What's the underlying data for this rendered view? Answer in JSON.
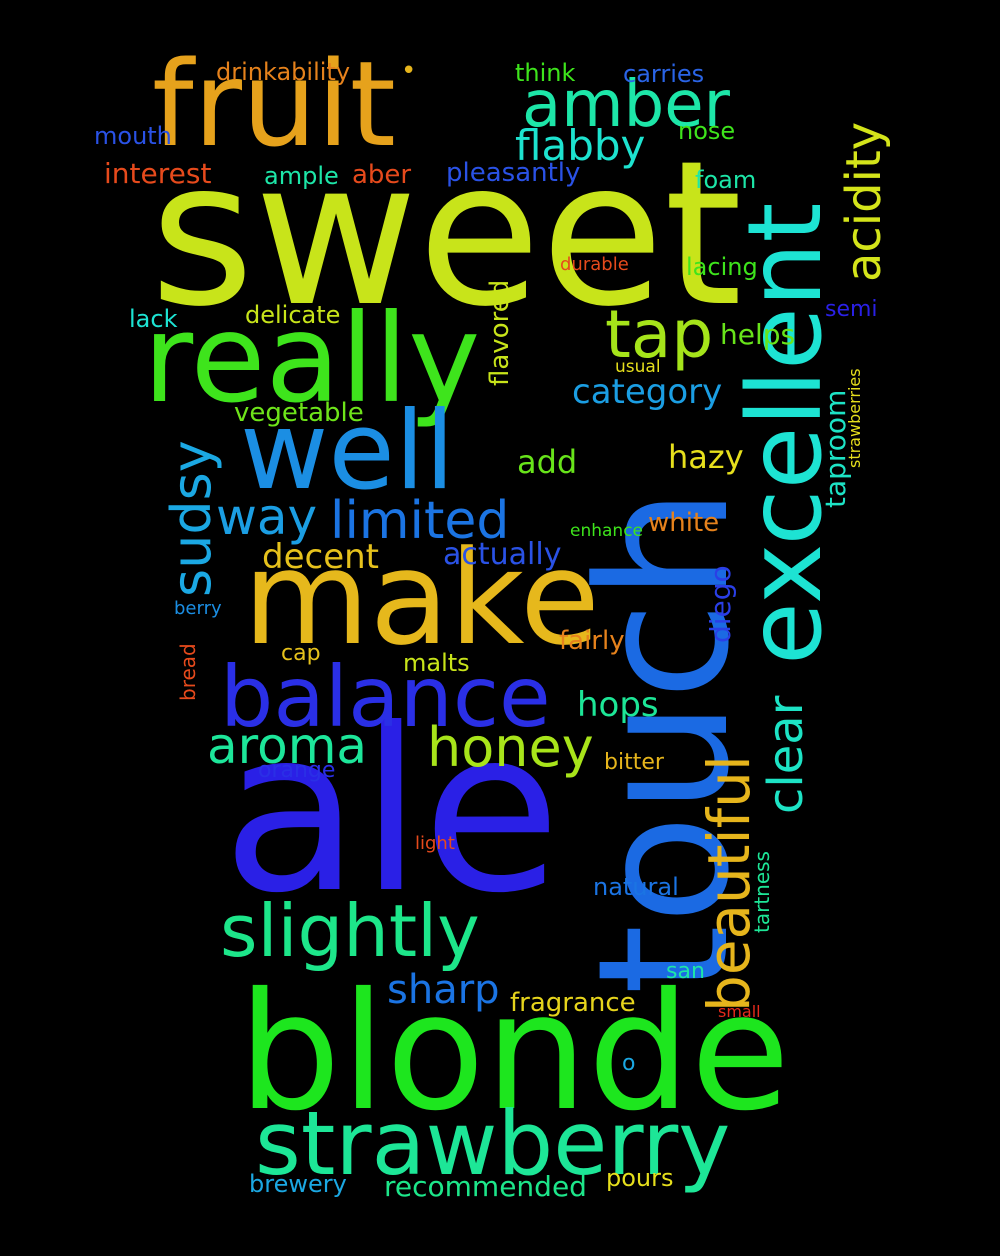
{
  "background": "#000000",
  "words": [
    {
      "text": "sweet",
      "color": "#c8e41a"
    },
    {
      "text": "ale",
      "color": "#2a20e6"
    },
    {
      "text": "touch",
      "color": "#1b6ae3"
    },
    {
      "text": "blonde",
      "color": "#1de61e"
    },
    {
      "text": "make",
      "color": "#e6b81c"
    },
    {
      "text": "really",
      "color": "#3ee41c"
    },
    {
      "text": "fruit",
      "color": "#e6a21c"
    },
    {
      "text": "excellent",
      "color": "#1de3d3"
    },
    {
      "text": "well",
      "color": "#1b8ee3"
    },
    {
      "text": "strawberry",
      "color": "#1de697"
    },
    {
      "text": "balance",
      "color": "#2a2fe6"
    },
    {
      "text": "slightly",
      "color": "#1de68a"
    },
    {
      "text": "amber",
      "color": "#1de6a8"
    },
    {
      "text": "beautiful",
      "color": "#e6b51c"
    },
    {
      "text": "tap",
      "color": "#a5e41a"
    },
    {
      "text": "honey",
      "color": "#a8e41a"
    },
    {
      "text": "aroma",
      "color": "#1de69a"
    },
    {
      "text": "limited",
      "color": "#1b74e3"
    },
    {
      "text": "sudsy",
      "color": "#1ba8e3"
    },
    {
      "text": "acidity",
      "color": "#d4e41a"
    },
    {
      "text": "clear",
      "color": "#1de3c5"
    },
    {
      "text": "flabby",
      "color": "#1de3cf"
    },
    {
      "text": "way",
      "color": "#1b9ee3"
    },
    {
      "text": "sharp",
      "color": "#1b74e3"
    },
    {
      "text": "decent",
      "color": "#e6c21c"
    },
    {
      "text": "category",
      "color": "#1b9ee3"
    },
    {
      "text": "hops",
      "color": "#1de697"
    },
    {
      "text": "add",
      "color": "#68e41a"
    },
    {
      "text": "hazy",
      "color": "#e6df1c"
    },
    {
      "text": "actually",
      "color": "#2a52e6"
    },
    {
      "text": "interest",
      "color": "#e64a1c"
    },
    {
      "text": "taproom",
      "color": "#1de3c5"
    },
    {
      "text": "diego",
      "color": "#2a3fe6"
    },
    {
      "text": "pleasantly",
      "color": "#2a52e6"
    },
    {
      "text": "helps",
      "color": "#68e41a"
    },
    {
      "text": "flavored",
      "color": "#c8e41a"
    },
    {
      "text": "fragrance",
      "color": "#e6d41c"
    },
    {
      "text": "recommended",
      "color": "#1de68a"
    },
    {
      "text": "vegetable",
      "color": "#6ee41a"
    },
    {
      "text": "drinkability",
      "color": "#e6821c"
    },
    {
      "text": "delicate",
      "color": "#c8e41a"
    },
    {
      "text": "white",
      "color": "#e6821c"
    },
    {
      "text": "fairly",
      "color": "#e6821c"
    },
    {
      "text": "brewery",
      "color": "#1ba8e3"
    },
    {
      "text": "pours",
      "color": "#e6df1c"
    },
    {
      "text": "mouth",
      "color": "#2a52e6"
    },
    {
      "text": "ample",
      "color": "#1de6a8"
    },
    {
      "text": "aber",
      "color": "#e64a1c"
    },
    {
      "text": "carries",
      "color": "#2a64e6"
    },
    {
      "text": "think",
      "color": "#3ee41c"
    },
    {
      "text": "nose",
      "color": "#3ee41c"
    },
    {
      "text": "foam",
      "color": "#1de6a8"
    },
    {
      "text": "lacing",
      "color": "#3ee41c"
    },
    {
      "text": "lack",
      "color": "#1de3d3"
    },
    {
      "text": "natural",
      "color": "#1b74e3"
    },
    {
      "text": "malts",
      "color": "#c8e41a"
    },
    {
      "text": "bitter",
      "color": "#e6b51c"
    },
    {
      "text": "san",
      "color": "#1de6a8"
    },
    {
      "text": "orange",
      "color": "#2a2fe6"
    },
    {
      "text": "semi",
      "color": "#2a20e6"
    },
    {
      "text": "tartness",
      "color": "#1de697"
    },
    {
      "text": "cap",
      "color": "#e6c21c"
    },
    {
      "text": "bread",
      "color": "#e64a1c"
    },
    {
      "text": "berry",
      "color": "#1b8ee3"
    },
    {
      "text": "strawberries",
      "color": "#e6df1c"
    },
    {
      "text": "durable",
      "color": "#e64a1c"
    },
    {
      "text": "usual",
      "color": "#e6df1c"
    },
    {
      "text": "enhance",
      "color": "#3ee41c"
    },
    {
      "text": "light",
      "color": "#e64a1c"
    },
    {
      "text": "small",
      "color": "#e62a1c"
    },
    {
      "text": "o",
      "color": "#1ba8e3"
    },
    {
      "text": "•",
      "color": "#e6b51c"
    }
  ]
}
